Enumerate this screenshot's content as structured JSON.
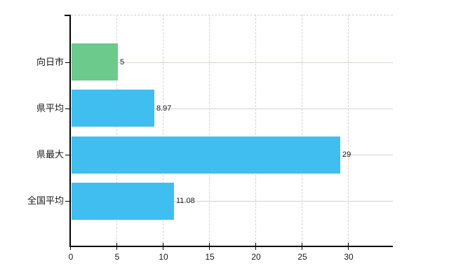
{
  "chart_data": {
    "type": "bar",
    "orientation": "horizontal",
    "title": "",
    "xlabel": "",
    "ylabel": "",
    "categories": [
      "向日市",
      "県平均",
      "県最大",
      "全国平均"
    ],
    "values": [
      5,
      8.97,
      29,
      11.08
    ],
    "value_labels": [
      "5",
      "8.97",
      "29",
      "11.08"
    ],
    "bar_colors": [
      "#6cca8c",
      "#41bef0",
      "#41bef0",
      "#41bef0"
    ],
    "xticks": [
      0,
      5,
      10,
      15,
      20,
      25,
      30
    ],
    "xtick_labels": [
      "0",
      "5",
      "10",
      "15",
      "20",
      "25",
      "30"
    ],
    "xlim": [
      0,
      34.8
    ],
    "grid": true,
    "legend_position": "none",
    "colors": {
      "axis": "#000000",
      "grid_horizontal": "#d0d6cc",
      "grid_vertical": "#dcd2d6",
      "plot_top_border": "#d6d2cc",
      "text": "#1a1a1a",
      "background": "#ffffff"
    }
  }
}
